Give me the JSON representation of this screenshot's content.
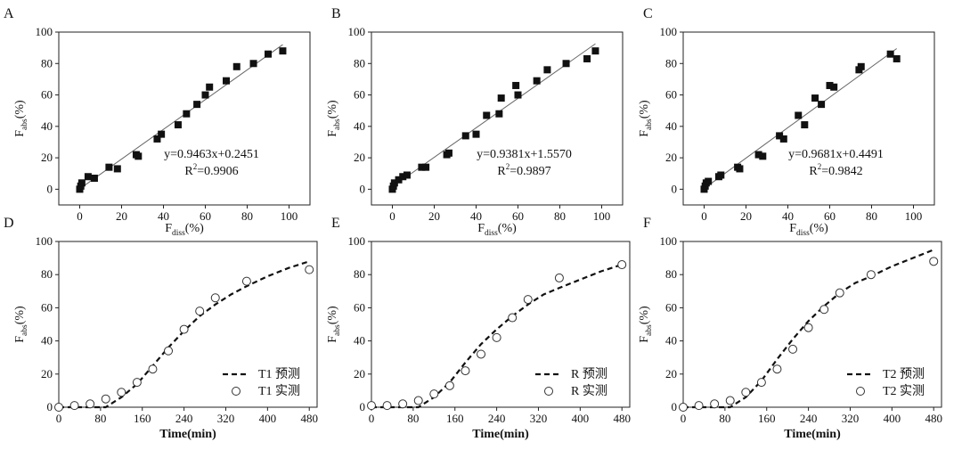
{
  "chart_data": [
    {
      "panel_label": "A",
      "type": "scatter",
      "xlabel_main": "F",
      "xlabel_sub": "diss",
      "xlabel_unit": "(%)",
      "ylabel_main": "F",
      "ylabel_sub": "abs",
      "ylabel_unit": "(%)",
      "xlim": [
        -10,
        110
      ],
      "ylim": [
        -10,
        100
      ],
      "xticks": [
        0,
        20,
        40,
        60,
        80,
        100
      ],
      "yticks": [
        0,
        20,
        40,
        60,
        80,
        100
      ],
      "equation": "y=0.9463x+0.2451",
      "r2_label": "R",
      "r2_sup": "2",
      "r2_value": "=0.9906",
      "fit": {
        "slope": 0.9463,
        "intercept": 0.2451,
        "x_range": [
          0,
          97
        ]
      },
      "points": [
        [
          0,
          0
        ],
        [
          0.5,
          2
        ],
        [
          1,
          4
        ],
        [
          4,
          8
        ],
        [
          7,
          7
        ],
        [
          14,
          14
        ],
        [
          18,
          13
        ],
        [
          27,
          22
        ],
        [
          28,
          21
        ],
        [
          37,
          32
        ],
        [
          39,
          35
        ],
        [
          47,
          41
        ],
        [
          51,
          48
        ],
        [
          56,
          54
        ],
        [
          60,
          60
        ],
        [
          62,
          65
        ],
        [
          70,
          69
        ],
        [
          75,
          78
        ],
        [
          83,
          80
        ],
        [
          90,
          86
        ],
        [
          97,
          88
        ]
      ]
    },
    {
      "panel_label": "B",
      "type": "scatter",
      "xlabel_main": "F",
      "xlabel_sub": "diss",
      "xlabel_unit": "(%)",
      "ylabel_main": "F",
      "ylabel_sub": "abs",
      "ylabel_unit": "(%)",
      "xlim": [
        -10,
        110
      ],
      "ylim": [
        -10,
        100
      ],
      "xticks": [
        0,
        20,
        40,
        60,
        80,
        100
      ],
      "yticks": [
        0,
        20,
        40,
        60,
        80,
        100
      ],
      "equation": "y=0.9381x+1.5570",
      "r2_label": "R",
      "r2_sup": "2",
      "r2_value": "=0.9897",
      "fit": {
        "slope": 0.9381,
        "intercept": 1.557,
        "x_range": [
          0,
          97
        ]
      },
      "points": [
        [
          0,
          0
        ],
        [
          0.5,
          2
        ],
        [
          1,
          4
        ],
        [
          3,
          6
        ],
        [
          5,
          8
        ],
        [
          7,
          9
        ],
        [
          14,
          14
        ],
        [
          16,
          14
        ],
        [
          26,
          22
        ],
        [
          27,
          23
        ],
        [
          35,
          34
        ],
        [
          40,
          35
        ],
        [
          45,
          47
        ],
        [
          51,
          48
        ],
        [
          52,
          58
        ],
        [
          59,
          66
        ],
        [
          60,
          60
        ],
        [
          69,
          69
        ],
        [
          74,
          76
        ],
        [
          83,
          80
        ],
        [
          93,
          83
        ],
        [
          97,
          88
        ]
      ]
    },
    {
      "panel_label": "C",
      "type": "scatter",
      "xlabel_main": "F",
      "xlabel_sub": "diss",
      "xlabel_unit": "(%)",
      "ylabel_main": "F",
      "ylabel_sub": "abs",
      "ylabel_unit": "(%)",
      "xlim": [
        -10,
        110
      ],
      "ylim": [
        -10,
        100
      ],
      "xticks": [
        0,
        20,
        40,
        60,
        80,
        100
      ],
      "yticks": [
        0,
        20,
        40,
        60,
        80,
        100
      ],
      "equation": "y=0.9681x+0.4491",
      "r2_label": "R",
      "r2_sup": "2",
      "r2_value": "=0.9842",
      "fit": {
        "slope": 0.9681,
        "intercept": 0.4491,
        "x_range": [
          0,
          92
        ]
      },
      "points": [
        [
          0,
          0
        ],
        [
          0.5,
          2
        ],
        [
          1,
          4
        ],
        [
          2,
          5
        ],
        [
          7,
          8
        ],
        [
          8,
          9
        ],
        [
          16,
          14
        ],
        [
          17,
          13
        ],
        [
          26,
          22
        ],
        [
          28,
          21
        ],
        [
          36,
          34
        ],
        [
          38,
          32
        ],
        [
          45,
          47
        ],
        [
          48,
          41
        ],
        [
          53,
          58
        ],
        [
          56,
          54
        ],
        [
          60,
          66
        ],
        [
          62,
          65
        ],
        [
          74,
          76
        ],
        [
          75,
          78
        ],
        [
          89,
          86
        ],
        [
          92,
          83
        ]
      ]
    },
    {
      "panel_label": "D",
      "type": "line",
      "xlabel": "Time(min)",
      "ylabel_main": "F",
      "ylabel_sub": "abs",
      "ylabel_unit": "(%)",
      "xlim": [
        0,
        495
      ],
      "ylim": [
        0,
        100
      ],
      "xticks": [
        0,
        80,
        160,
        240,
        320,
        400,
        480
      ],
      "yticks": [
        0,
        20,
        40,
        60,
        80,
        100
      ],
      "predicted_label": "T1  预测",
      "actual_label": "T1  实测",
      "predicted": [
        [
          0,
          0
        ],
        [
          90,
          0
        ],
        [
          120,
          6
        ],
        [
          150,
          14
        ],
        [
          180,
          25
        ],
        [
          210,
          36
        ],
        [
          240,
          46
        ],
        [
          270,
          55
        ],
        [
          300,
          62
        ],
        [
          330,
          68
        ],
        [
          360,
          73
        ],
        [
          400,
          79
        ],
        [
          440,
          84
        ],
        [
          480,
          88
        ]
      ],
      "actual": [
        [
          0,
          0
        ],
        [
          30,
          1
        ],
        [
          60,
          2
        ],
        [
          90,
          5
        ],
        [
          120,
          9
        ],
        [
          150,
          15
        ],
        [
          180,
          23
        ],
        [
          210,
          34
        ],
        [
          240,
          47
        ],
        [
          270,
          58
        ],
        [
          300,
          66
        ],
        [
          360,
          76
        ],
        [
          480,
          83
        ]
      ]
    },
    {
      "panel_label": "E",
      "type": "line",
      "xlabel": "Time(min)",
      "ylabel_main": "F",
      "ylabel_sub": "abs",
      "ylabel_unit": "(%)",
      "xlim": [
        0,
        495
      ],
      "ylim": [
        0,
        100
      ],
      "xticks": [
        0,
        80,
        160,
        240,
        320,
        400,
        480
      ],
      "yticks": [
        0,
        20,
        40,
        60,
        80,
        100
      ],
      "predicted_label": "R  预测",
      "actual_label": "R  实测",
      "predicted": [
        [
          0,
          0
        ],
        [
          90,
          0
        ],
        [
          120,
          6
        ],
        [
          150,
          15
        ],
        [
          180,
          27
        ],
        [
          210,
          38
        ],
        [
          240,
          47
        ],
        [
          270,
          55
        ],
        [
          300,
          62
        ],
        [
          330,
          68
        ],
        [
          360,
          72
        ],
        [
          400,
          77
        ],
        [
          440,
          82
        ],
        [
          480,
          86
        ]
      ],
      "actual": [
        [
          0,
          1
        ],
        [
          30,
          1
        ],
        [
          60,
          2
        ],
        [
          90,
          4
        ],
        [
          120,
          8
        ],
        [
          150,
          13
        ],
        [
          180,
          22
        ],
        [
          210,
          32
        ],
        [
          240,
          42
        ],
        [
          270,
          54
        ],
        [
          300,
          65
        ],
        [
          360,
          78
        ],
        [
          480,
          86
        ]
      ]
    },
    {
      "panel_label": "F",
      "type": "line",
      "xlabel": "Time(min)",
      "ylabel_main": "F",
      "ylabel_sub": "abs",
      "ylabel_unit": "(%)",
      "xlim": [
        0,
        495
      ],
      "ylim": [
        0,
        100
      ],
      "xticks": [
        0,
        80,
        160,
        240,
        320,
        400,
        480
      ],
      "yticks": [
        0,
        20,
        40,
        60,
        80,
        100
      ],
      "predicted_label": "T2  预测",
      "actual_label": "T2  实测",
      "predicted": [
        [
          0,
          0
        ],
        [
          90,
          0
        ],
        [
          120,
          6
        ],
        [
          150,
          16
        ],
        [
          180,
          29
        ],
        [
          210,
          41
        ],
        [
          240,
          52
        ],
        [
          270,
          61
        ],
        [
          300,
          69
        ],
        [
          330,
          75
        ],
        [
          360,
          79
        ],
        [
          400,
          85
        ],
        [
          440,
          90
        ],
        [
          480,
          95
        ]
      ],
      "actual": [
        [
          0,
          0
        ],
        [
          30,
          1
        ],
        [
          60,
          2
        ],
        [
          90,
          4
        ],
        [
          120,
          9
        ],
        [
          150,
          15
        ],
        [
          180,
          23
        ],
        [
          210,
          35
        ],
        [
          240,
          48
        ],
        [
          270,
          59
        ],
        [
          300,
          69
        ],
        [
          360,
          80
        ],
        [
          480,
          88
        ]
      ]
    }
  ]
}
